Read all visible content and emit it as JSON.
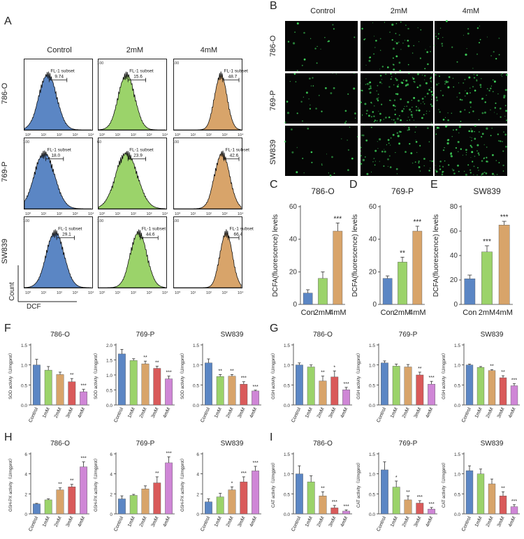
{
  "panel_letters": [
    "A",
    "B",
    "C",
    "D",
    "E",
    "F",
    "G",
    "H",
    "I"
  ],
  "flow": {
    "col_headers": [
      "Control",
      "2mM",
      "4mM"
    ],
    "row_labels": [
      "786-O",
      "769-P",
      "SW839"
    ],
    "subset_label": "FL-1 subset",
    "x_label": "DCF",
    "y_label": "Count",
    "colors": {
      "control": "#5b86c4",
      "2mM": "#9bd36a",
      "4mM": "#d8a46a"
    },
    "cells": [
      [
        {
          "value": "9.74",
          "ymax": ""
        },
        {
          "value": "15.6",
          "ymax": "100"
        },
        {
          "value": "48.7",
          "ymax": "100"
        }
      ],
      [
        {
          "value": "18.0",
          "ymax": "100"
        },
        {
          "value": "23.9",
          "ymax": "60"
        },
        {
          "value": "42.6",
          "ymax": "100"
        }
      ],
      [
        {
          "value": "29.1",
          "ymax": "100"
        },
        {
          "value": "44.6",
          "ymax": "100"
        },
        {
          "value": "66.4",
          "ymax": "100"
        }
      ]
    ]
  },
  "micro": {
    "col_headers": [
      "Control",
      "2mM",
      "4mM"
    ],
    "row_labels": [
      "786-O",
      "769-P",
      "SW839"
    ],
    "dot_color": "#3fd35a",
    "density": [
      [
        0.12,
        0.35,
        0.18
      ],
      [
        0.22,
        0.9,
        0.55
      ],
      [
        0.15,
        0.45,
        0.7
      ]
    ]
  },
  "chart_data": [
    {
      "panel": "C",
      "type": "bar",
      "title": "786-O",
      "ylabel": "DCFA(fluorescence) levels",
      "categories": [
        "Con",
        "2mM",
        "4mM"
      ],
      "values": [
        7,
        16,
        45
      ],
      "errors": [
        2,
        4,
        5
      ],
      "sig": [
        "",
        "",
        "***"
      ],
      "ylim": [
        0,
        60
      ],
      "yticks": [
        0,
        20,
        40,
        60
      ]
    },
    {
      "panel": "D",
      "type": "bar",
      "title": "769-P",
      "ylabel": "DCFA(fluorescence) levels",
      "categories": [
        "Con",
        "2mM",
        "4mM"
      ],
      "values": [
        16,
        26,
        45
      ],
      "errors": [
        1.5,
        3,
        3
      ],
      "sig": [
        "",
        "**",
        "***"
      ],
      "ylim": [
        0,
        60
      ],
      "yticks": [
        0,
        20,
        40,
        60
      ]
    },
    {
      "panel": "E",
      "type": "bar",
      "title": "SW839",
      "ylabel": "DCFA(fluorescence) levels",
      "categories": [
        "Con",
        "2mM",
        "4mM"
      ],
      "values": [
        21,
        43,
        65
      ],
      "errors": [
        3,
        5,
        3
      ],
      "sig": [
        "",
        "***",
        "***"
      ],
      "ylim": [
        0,
        80
      ],
      "yticks": [
        0,
        20,
        40,
        60,
        80
      ]
    },
    {
      "panel": "F",
      "type": "bar",
      "title": "786-O",
      "ylabel": "SOD activity（U/mgprot）",
      "categories": [
        "Control",
        "1mM",
        "2mM",
        "3mM",
        "4mM"
      ],
      "values": [
        1.0,
        0.87,
        0.76,
        0.58,
        0.33
      ],
      "errors": [
        0.14,
        0.09,
        0.06,
        0.08,
        0.06
      ],
      "sig": [
        "",
        "",
        "",
        "**",
        "***"
      ],
      "ylim": [
        0,
        1.5
      ],
      "yticks": [
        0.0,
        0.5,
        1.0,
        1.5
      ]
    },
    {
      "panel": "F",
      "type": "bar",
      "title": "769-P",
      "ylabel": "SOD activity（U/mgprot）",
      "categories": [
        "Control",
        "1mM",
        "2mM",
        "3mM",
        "4mM"
      ],
      "values": [
        1.7,
        1.48,
        1.37,
        1.22,
        0.87
      ],
      "errors": [
        0.15,
        0.06,
        0.09,
        0.07,
        0.09
      ],
      "sig": [
        "",
        "",
        "**",
        "**",
        "***"
      ],
      "ylim": [
        0,
        2.0
      ],
      "yticks": [
        0.0,
        0.5,
        1.0,
        1.5,
        2.0
      ]
    },
    {
      "panel": "F",
      "type": "bar",
      "title": "SW839",
      "ylabel": "SOD activity（U/mgprot）",
      "categories": [
        "Control",
        "1mM",
        "2mM",
        "3mM",
        "4mM"
      ],
      "values": [
        1.05,
        0.71,
        0.72,
        0.52,
        0.35
      ],
      "errors": [
        0.1,
        0.05,
        0.04,
        0.06,
        0.02
      ],
      "sig": [
        "",
        "**",
        "**",
        "***",
        "***"
      ],
      "ylim": [
        0,
        1.5
      ],
      "yticks": [
        0.0,
        0.5,
        1.0,
        1.5
      ]
    },
    {
      "panel": "G",
      "type": "bar",
      "title": "786-O",
      "ylabel": "GSH activity（U/mgprot）",
      "categories": [
        "Control",
        "1mM",
        "2mM",
        "3mM",
        "4mM"
      ],
      "values": [
        1.0,
        0.95,
        0.6,
        0.7,
        0.38
      ],
      "errors": [
        0.05,
        0.05,
        0.12,
        0.15,
        0.06
      ],
      "sig": [
        "",
        "",
        "**",
        "*",
        "***"
      ],
      "ylim": [
        0,
        1.5
      ],
      "yticks": [
        0.0,
        0.5,
        1.0,
        1.5
      ]
    },
    {
      "panel": "G",
      "type": "bar",
      "title": "769-P",
      "ylabel": "GSH activity（U/mgprot）",
      "categories": [
        "Control",
        "1mM",
        "2mM",
        "3mM",
        "4mM"
      ],
      "values": [
        1.05,
        0.97,
        0.95,
        0.75,
        0.52
      ],
      "errors": [
        0.05,
        0.05,
        0.06,
        0.07,
        0.07
      ],
      "sig": [
        "",
        "",
        "",
        "**",
        "***"
      ],
      "ylim": [
        0,
        1.5
      ],
      "yticks": [
        0.0,
        0.5,
        1.0,
        1.5
      ]
    },
    {
      "panel": "G",
      "type": "bar",
      "title": "SW839",
      "ylabel": "GSH activity（U/mgprot）",
      "categories": [
        "Control",
        "1mM",
        "2mM",
        "3mM",
        "4mM"
      ],
      "values": [
        1.0,
        0.94,
        0.86,
        0.68,
        0.48
      ],
      "errors": [
        0.02,
        0.02,
        0.02,
        0.05,
        0.05
      ],
      "sig": [
        "",
        "",
        "**",
        "**",
        "***"
      ],
      "ylim": [
        0,
        1.5
      ],
      "yticks": [
        0.0,
        0.5,
        1.0,
        1.5
      ]
    },
    {
      "panel": "H",
      "type": "bar",
      "title": "786-O",
      "ylabel": "GSH-PX activity（U/mgprot）",
      "categories": [
        "Control",
        "1mM",
        "2mM",
        "3mM",
        "4mM"
      ],
      "values": [
        1.0,
        1.4,
        2.4,
        2.7,
        4.7
      ],
      "errors": [
        0.05,
        0.1,
        0.2,
        0.25,
        0.5
      ],
      "sig": [
        "",
        "",
        "**",
        "**",
        "***"
      ],
      "ylim": [
        0,
        6
      ],
      "yticks": [
        0,
        2,
        4,
        6
      ]
    },
    {
      "panel": "H",
      "type": "bar",
      "title": "769-P",
      "ylabel": "GSH-PX activity（U/mgprot）",
      "categories": [
        "Control",
        "1mM",
        "2mM",
        "3mM",
        "4mM"
      ],
      "values": [
        1.5,
        1.85,
        2.5,
        3.1,
        5.1
      ],
      "errors": [
        0.3,
        0.1,
        0.3,
        0.6,
        0.6
      ],
      "sig": [
        "",
        "",
        "",
        "**",
        "***"
      ],
      "ylim": [
        0,
        6
      ],
      "yticks": [
        0,
        2,
        4,
        6
      ]
    },
    {
      "panel": "H",
      "type": "bar",
      "title": "SW839",
      "ylabel": "GSH-PX activity（U/mgprot）",
      "categories": [
        "Control",
        "1mM",
        "2mM",
        "3mM",
        "4mM"
      ],
      "values": [
        1.2,
        1.7,
        2.4,
        3.2,
        4.3
      ],
      "errors": [
        0.3,
        0.35,
        0.3,
        0.5,
        0.45
      ],
      "sig": [
        "",
        "",
        "*",
        "***",
        "***"
      ],
      "ylim": [
        0,
        6
      ],
      "yticks": [
        0,
        2,
        4,
        6
      ]
    },
    {
      "panel": "I",
      "type": "bar",
      "title": "786-O",
      "ylabel": "CAT activity（U/mgprot）",
      "categories": [
        "Control",
        "1mM",
        "2mM",
        "3mM",
        "4mM"
      ],
      "values": [
        1.0,
        0.8,
        0.45,
        0.15,
        0.07
      ],
      "errors": [
        0.2,
        0.15,
        0.1,
        0.06,
        0.03
      ],
      "sig": [
        "",
        "",
        "**",
        "***",
        "***"
      ],
      "ylim": [
        0,
        1.5
      ],
      "yticks": [
        0.0,
        0.5,
        1.0,
        1.5
      ]
    },
    {
      "panel": "I",
      "type": "bar",
      "title": "769-P",
      "ylabel": "CAT activity（U/mgprot）",
      "categories": [
        "Control",
        "1mM",
        "2mM",
        "3mM",
        "4mM"
      ],
      "values": [
        1.1,
        0.67,
        0.35,
        0.27,
        0.12
      ],
      "errors": [
        0.2,
        0.15,
        0.1,
        0.06,
        0.04
      ],
      "sig": [
        "",
        "*",
        "**",
        "***",
        "***"
      ],
      "ylim": [
        0,
        1.5
      ],
      "yticks": [
        0.0,
        0.5,
        1.0,
        1.5
      ]
    },
    {
      "panel": "I",
      "type": "bar",
      "title": "SW839",
      "ylabel": "CAT activity（U/mgprot）",
      "categories": [
        "Control",
        "1mM",
        "2mM",
        "3mM",
        "4mM"
      ],
      "values": [
        1.08,
        1.0,
        0.75,
        0.45,
        0.18
      ],
      "errors": [
        0.12,
        0.12,
        0.12,
        0.1,
        0.05
      ],
      "sig": [
        "",
        "",
        "",
        "**",
        "***"
      ],
      "ylim": [
        0,
        1.5
      ],
      "yticks": [
        0.0,
        0.5,
        1.0,
        1.5
      ]
    }
  ],
  "bar_colors_3": [
    "#5b86c4",
    "#9bd36a",
    "#d8a46a"
  ],
  "bar_colors_5": [
    "#5b86c4",
    "#9bd36a",
    "#d8a46a",
    "#d95a5a",
    "#cf86d6"
  ]
}
